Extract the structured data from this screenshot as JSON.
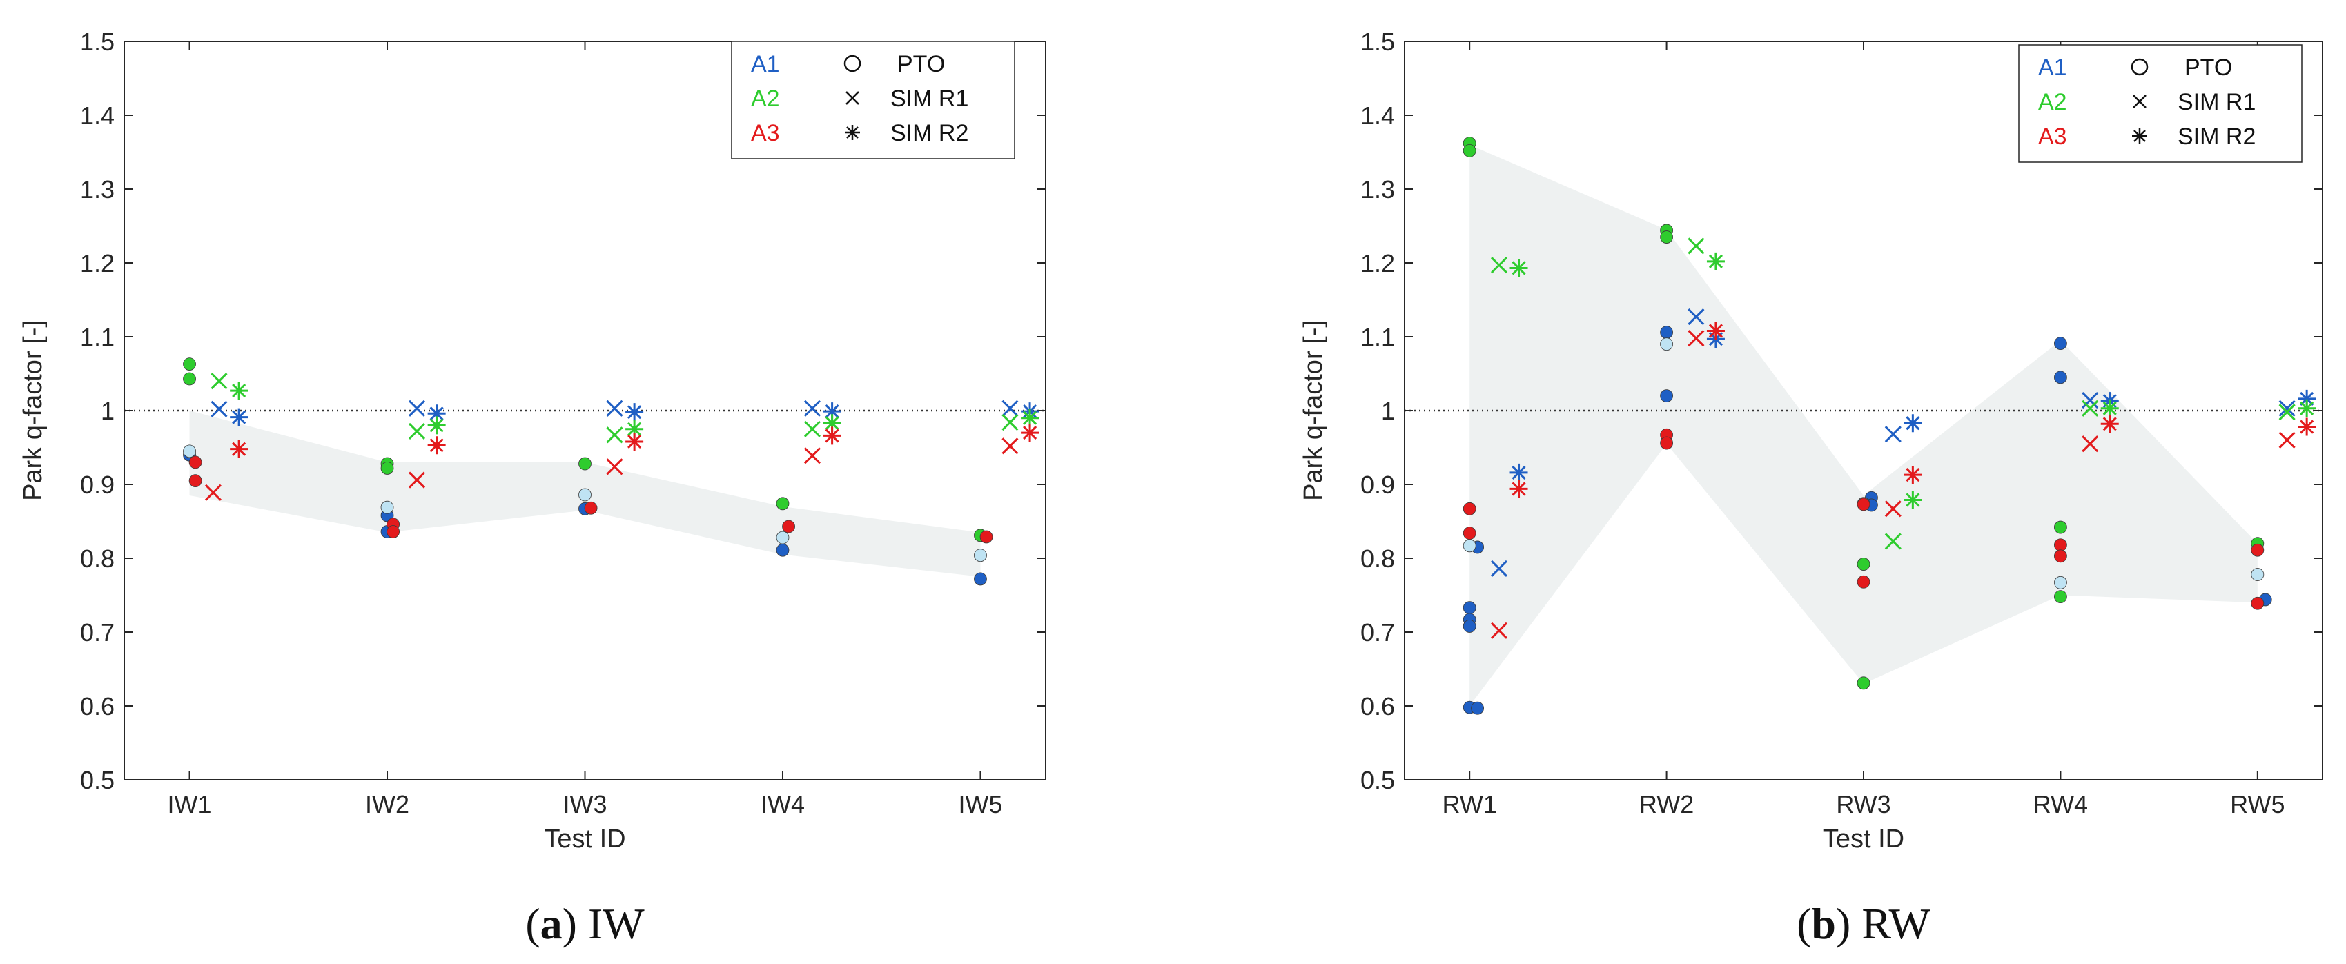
{
  "chart_data": [
    {
      "type": "scatter",
      "caption_label": "a",
      "caption_text": "IW",
      "xlabel": "Test ID",
      "ylabel": "Park q-factor [-]",
      "categories": [
        "IW1",
        "IW2",
        "IW3",
        "IW4",
        "IW5"
      ],
      "ylim": [
        0.5,
        1.5
      ],
      "yticks": [
        "0.5",
        "0.6",
        "0.7",
        "0.8",
        "0.9",
        "1",
        "1.1",
        "1.2",
        "1.3",
        "1.4",
        "1.5"
      ],
      "reference_line": 1.0,
      "band": {
        "upper": [
          1.0,
          0.93,
          0.93,
          0.87,
          0.835
        ],
        "lower": [
          0.885,
          0.835,
          0.865,
          0.805,
          0.775
        ]
      },
      "legend": {
        "position": "top-right",
        "colors": [
          {
            "label": "A1",
            "color": "#1f5fc4"
          },
          {
            "label": "A2",
            "color": "#2ecc2e"
          },
          {
            "label": "A3",
            "color": "#e31a1c"
          }
        ],
        "markers": [
          {
            "label": "PTO",
            "marker": "circle"
          },
          {
            "label": "SIM R1",
            "marker": "x"
          },
          {
            "label": "SIM R2",
            "marker": "star"
          }
        ]
      },
      "series": [
        {
          "name": "PTO",
          "marker": "circle",
          "points": [
            {
              "x": 1,
              "y": 0.94,
              "c": "#1f5fc4"
            },
            {
              "x": 1,
              "y": 0.945,
              "c": "#bfe3f3"
            },
            {
              "x": 1,
              "y": 1.063,
              "c": "#2ecc2e"
            },
            {
              "x": 1,
              "y": 1.043,
              "c": "#2ecc2e"
            },
            {
              "x": 1.03,
              "y": 0.93,
              "c": "#e31a1c"
            },
            {
              "x": 1.03,
              "y": 0.905,
              "c": "#e31a1c"
            },
            {
              "x": 2,
              "y": 0.858,
              "c": "#1f5fc4"
            },
            {
              "x": 2,
              "y": 0.836,
              "c": "#1f5fc4"
            },
            {
              "x": 2,
              "y": 0.869,
              "c": "#bfe3f3"
            },
            {
              "x": 2,
              "y": 0.928,
              "c": "#2ecc2e"
            },
            {
              "x": 2,
              "y": 0.922,
              "c": "#2ecc2e"
            },
            {
              "x": 2.03,
              "y": 0.846,
              "c": "#e31a1c"
            },
            {
              "x": 2.03,
              "y": 0.836,
              "c": "#e31a1c"
            },
            {
              "x": 3,
              "y": 0.867,
              "c": "#1f5fc4"
            },
            {
              "x": 3,
              "y": 0.886,
              "c": "#bfe3f3"
            },
            {
              "x": 3,
              "y": 0.928,
              "c": "#2ecc2e"
            },
            {
              "x": 3.03,
              "y": 0.868,
              "c": "#e31a1c"
            },
            {
              "x": 4,
              "y": 0.811,
              "c": "#1f5fc4"
            },
            {
              "x": 4,
              "y": 0.828,
              "c": "#bfe3f3"
            },
            {
              "x": 4,
              "y": 0.874,
              "c": "#2ecc2e"
            },
            {
              "x": 4.03,
              "y": 0.843,
              "c": "#e31a1c"
            },
            {
              "x": 5,
              "y": 0.772,
              "c": "#1f5fc4"
            },
            {
              "x": 5,
              "y": 0.804,
              "c": "#bfe3f3"
            },
            {
              "x": 5,
              "y": 0.831,
              "c": "#2ecc2e"
            },
            {
              "x": 5.03,
              "y": 0.829,
              "c": "#e31a1c"
            }
          ]
        },
        {
          "name": "SIM R1",
          "marker": "x",
          "points": [
            {
              "x": 1.15,
              "y": 1.002,
              "c": "#1f5fc4"
            },
            {
              "x": 1.15,
              "y": 1.04,
              "c": "#2ecc2e"
            },
            {
              "x": 1.12,
              "y": 0.889,
              "c": "#e31a1c"
            },
            {
              "x": 2.15,
              "y": 1.003,
              "c": "#1f5fc4"
            },
            {
              "x": 2.15,
              "y": 0.972,
              "c": "#2ecc2e"
            },
            {
              "x": 2.15,
              "y": 0.906,
              "c": "#e31a1c"
            },
            {
              "x": 3.15,
              "y": 1.003,
              "c": "#1f5fc4"
            },
            {
              "x": 3.15,
              "y": 0.967,
              "c": "#2ecc2e"
            },
            {
              "x": 3.15,
              "y": 0.924,
              "c": "#e31a1c"
            },
            {
              "x": 4.15,
              "y": 1.003,
              "c": "#1f5fc4"
            },
            {
              "x": 4.15,
              "y": 0.975,
              "c": "#2ecc2e"
            },
            {
              "x": 4.15,
              "y": 0.939,
              "c": "#e31a1c"
            },
            {
              "x": 5.15,
              "y": 1.003,
              "c": "#1f5fc4"
            },
            {
              "x": 5.15,
              "y": 0.984,
              "c": "#2ecc2e"
            },
            {
              "x": 5.15,
              "y": 0.952,
              "c": "#e31a1c"
            }
          ]
        },
        {
          "name": "SIM R2",
          "marker": "star",
          "points": [
            {
              "x": 1.25,
              "y": 0.991,
              "c": "#1f5fc4"
            },
            {
              "x": 1.25,
              "y": 1.027,
              "c": "#2ecc2e"
            },
            {
              "x": 1.25,
              "y": 0.948,
              "c": "#e31a1c"
            },
            {
              "x": 2.25,
              "y": 0.996,
              "c": "#1f5fc4"
            },
            {
              "x": 2.25,
              "y": 0.98,
              "c": "#2ecc2e"
            },
            {
              "x": 2.25,
              "y": 0.953,
              "c": "#e31a1c"
            },
            {
              "x": 3.25,
              "y": 0.998,
              "c": "#1f5fc4"
            },
            {
              "x": 3.25,
              "y": 0.975,
              "c": "#2ecc2e"
            },
            {
              "x": 3.25,
              "y": 0.958,
              "c": "#e31a1c"
            },
            {
              "x": 4.25,
              "y": 0.999,
              "c": "#1f5fc4"
            },
            {
              "x": 4.25,
              "y": 0.983,
              "c": "#2ecc2e"
            },
            {
              "x": 4.25,
              "y": 0.966,
              "c": "#e31a1c"
            },
            {
              "x": 5.25,
              "y": 0.999,
              "c": "#1f5fc4"
            },
            {
              "x": 5.25,
              "y": 0.99,
              "c": "#2ecc2e"
            },
            {
              "x": 5.25,
              "y": 0.97,
              "c": "#e31a1c"
            }
          ]
        }
      ]
    },
    {
      "type": "scatter",
      "caption_label": "b",
      "caption_text": "RW",
      "xlabel": "Test ID",
      "ylabel": "Park q-factor [-]",
      "categories": [
        "RW1",
        "RW2",
        "RW3",
        "RW4",
        "RW5"
      ],
      "ylim": [
        0.5,
        1.5
      ],
      "yticks": [
        "0.5",
        "0.6",
        "0.7",
        "0.8",
        "0.9",
        "1",
        "1.1",
        "1.2",
        "1.3",
        "1.4",
        "1.5"
      ],
      "reference_line": 1.0,
      "band": {
        "upper": [
          1.36,
          1.245,
          0.885,
          1.095,
          0.82
        ],
        "lower": [
          0.6,
          0.955,
          0.63,
          0.75,
          0.74
        ]
      },
      "legend": {
        "position": "top-right",
        "colors": [
          {
            "label": "A1",
            "color": "#1f5fc4"
          },
          {
            "label": "A2",
            "color": "#2ecc2e"
          },
          {
            "label": "A3",
            "color": "#e31a1c"
          }
        ],
        "markers": [
          {
            "label": "PTO",
            "marker": "circle"
          },
          {
            "label": "SIM R1",
            "marker": "x"
          },
          {
            "label": "SIM R2",
            "marker": "star"
          }
        ]
      },
      "series": [
        {
          "name": "PTO",
          "marker": "circle",
          "points": [
            {
              "x": 1,
              "y": 0.733,
              "c": "#1f5fc4"
            },
            {
              "x": 1,
              "y": 0.717,
              "c": "#1f5fc4"
            },
            {
              "x": 1,
              "y": 0.708,
              "c": "#1f5fc4"
            },
            {
              "x": 1,
              "y": 0.598,
              "c": "#1f5fc4"
            },
            {
              "x": 1.04,
              "y": 0.597,
              "c": "#1f5fc4"
            },
            {
              "x": 1.04,
              "y": 0.815,
              "c": "#1f5fc4"
            },
            {
              "x": 1,
              "y": 0.817,
              "c": "#bfe3f3"
            },
            {
              "x": 1,
              "y": 1.362,
              "c": "#2ecc2e"
            },
            {
              "x": 1,
              "y": 1.352,
              "c": "#2ecc2e"
            },
            {
              "x": 1,
              "y": 0.867,
              "c": "#e31a1c"
            },
            {
              "x": 1,
              "y": 0.834,
              "c": "#e31a1c"
            },
            {
              "x": 2,
              "y": 1.106,
              "c": "#1f5fc4"
            },
            {
              "x": 2,
              "y": 1.02,
              "c": "#1f5fc4"
            },
            {
              "x": 2,
              "y": 1.09,
              "c": "#bfe3f3"
            },
            {
              "x": 2,
              "y": 1.244,
              "c": "#2ecc2e"
            },
            {
              "x": 2,
              "y": 1.235,
              "c": "#2ecc2e"
            },
            {
              "x": 2,
              "y": 0.967,
              "c": "#e31a1c"
            },
            {
              "x": 2,
              "y": 0.956,
              "c": "#e31a1c"
            },
            {
              "x": 3.04,
              "y": 0.882,
              "c": "#1f5fc4"
            },
            {
              "x": 3.04,
              "y": 0.872,
              "c": "#1f5fc4"
            },
            {
              "x": 3,
              "y": 0.874,
              "c": "#bfe3f3"
            },
            {
              "x": 3,
              "y": 0.792,
              "c": "#2ecc2e"
            },
            {
              "x": 3,
              "y": 0.631,
              "c": "#2ecc2e"
            },
            {
              "x": 3,
              "y": 0.873,
              "c": "#e31a1c"
            },
            {
              "x": 3,
              "y": 0.768,
              "c": "#e31a1c"
            },
            {
              "x": 4,
              "y": 1.091,
              "c": "#1f5fc4"
            },
            {
              "x": 4,
              "y": 1.045,
              "c": "#1f5fc4"
            },
            {
              "x": 4,
              "y": 0.767,
              "c": "#bfe3f3"
            },
            {
              "x": 4,
              "y": 0.842,
              "c": "#2ecc2e"
            },
            {
              "x": 4,
              "y": 0.748,
              "c": "#2ecc2e"
            },
            {
              "x": 4,
              "y": 0.818,
              "c": "#e31a1c"
            },
            {
              "x": 4,
              "y": 0.803,
              "c": "#e31a1c"
            },
            {
              "x": 5.04,
              "y": 0.744,
              "c": "#1f5fc4"
            },
            {
              "x": 5,
              "y": 0.778,
              "c": "#bfe3f3"
            },
            {
              "x": 5,
              "y": 0.82,
              "c": "#2ecc2e"
            },
            {
              "x": 5,
              "y": 0.811,
              "c": "#e31a1c"
            },
            {
              "x": 5,
              "y": 0.739,
              "c": "#e31a1c"
            }
          ]
        },
        {
          "name": "SIM R1",
          "marker": "x",
          "points": [
            {
              "x": 1.15,
              "y": 0.786,
              "c": "#1f5fc4"
            },
            {
              "x": 1.15,
              "y": 1.197,
              "c": "#2ecc2e"
            },
            {
              "x": 1.15,
              "y": 0.702,
              "c": "#e31a1c"
            },
            {
              "x": 2.15,
              "y": 1.127,
              "c": "#1f5fc4"
            },
            {
              "x": 2.15,
              "y": 1.223,
              "c": "#2ecc2e"
            },
            {
              "x": 2.15,
              "y": 1.098,
              "c": "#e31a1c"
            },
            {
              "x": 3.15,
              "y": 0.968,
              "c": "#1f5fc4"
            },
            {
              "x": 3.15,
              "y": 0.823,
              "c": "#2ecc2e"
            },
            {
              "x": 3.15,
              "y": 0.867,
              "c": "#e31a1c"
            },
            {
              "x": 4.15,
              "y": 1.014,
              "c": "#1f5fc4"
            },
            {
              "x": 4.15,
              "y": 1.003,
              "c": "#2ecc2e"
            },
            {
              "x": 4.15,
              "y": 0.955,
              "c": "#e31a1c"
            },
            {
              "x": 5.15,
              "y": 1.003,
              "c": "#1f5fc4"
            },
            {
              "x": 5.15,
              "y": 0.998,
              "c": "#2ecc2e"
            },
            {
              "x": 5.15,
              "y": 0.96,
              "c": "#e31a1c"
            }
          ]
        },
        {
          "name": "SIM R2",
          "marker": "star",
          "points": [
            {
              "x": 1.25,
              "y": 0.916,
              "c": "#1f5fc4"
            },
            {
              "x": 1.25,
              "y": 1.193,
              "c": "#2ecc2e"
            },
            {
              "x": 1.25,
              "y": 0.894,
              "c": "#e31a1c"
            },
            {
              "x": 2.25,
              "y": 1.097,
              "c": "#1f5fc4"
            },
            {
              "x": 2.25,
              "y": 1.202,
              "c": "#2ecc2e"
            },
            {
              "x": 2.25,
              "y": 1.108,
              "c": "#e31a1c"
            },
            {
              "x": 3.25,
              "y": 0.983,
              "c": "#1f5fc4"
            },
            {
              "x": 3.25,
              "y": 0.879,
              "c": "#2ecc2e"
            },
            {
              "x": 3.25,
              "y": 0.913,
              "c": "#e31a1c"
            },
            {
              "x": 4.25,
              "y": 1.013,
              "c": "#1f5fc4"
            },
            {
              "x": 4.25,
              "y": 1.003,
              "c": "#2ecc2e"
            },
            {
              "x": 4.25,
              "y": 0.982,
              "c": "#e31a1c"
            },
            {
              "x": 5.25,
              "y": 1.016,
              "c": "#1f5fc4"
            },
            {
              "x": 5.25,
              "y": 1.003,
              "c": "#2ecc2e"
            },
            {
              "x": 5.25,
              "y": 0.978,
              "c": "#e31a1c"
            }
          ]
        }
      ]
    }
  ]
}
